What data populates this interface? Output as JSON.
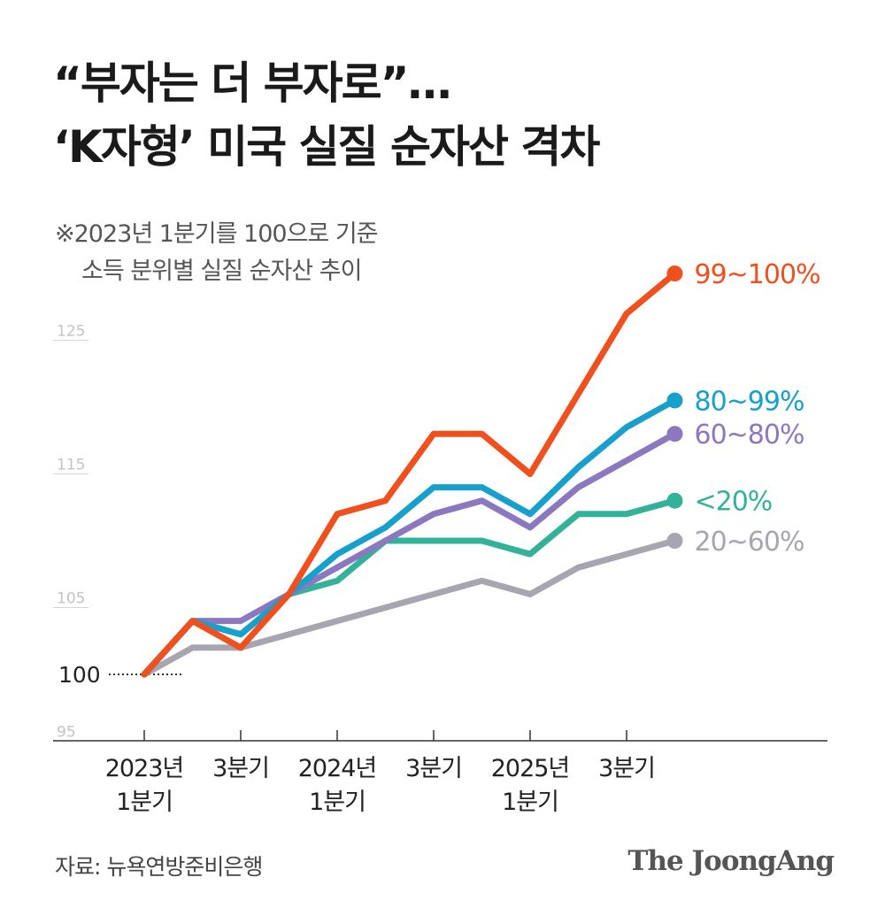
{
  "title": {
    "line1": "“부자는 더 부자로”…",
    "line2": "‘K자형’ 미국 실질 순자산 격차"
  },
  "subtitle": {
    "line1": "※2023년 1분기를 100으로 기준",
    "line2": "소득 분위별 실질 순자산 추이"
  },
  "source": "자료: 뉴욕연방준비은행",
  "logo": "The JoongAng",
  "chart_data": {
    "type": "line",
    "title": "",
    "xlabel": "",
    "ylabel": "",
    "ylim": [
      95,
      130
    ],
    "y_ticks": [
      {
        "value": 125,
        "label": "125"
      },
      {
        "value": 115,
        "label": "115"
      },
      {
        "value": 105,
        "label": "105"
      },
      {
        "value": 100,
        "label": "100"
      },
      {
        "value": 95,
        "label": "95"
      }
    ],
    "x": [
      "2023 Q1",
      "2023 Q2",
      "2023 Q3",
      "2023 Q4",
      "2024 Q1",
      "2024 Q2",
      "2024 Q3",
      "2024 Q4",
      "2025 Q1",
      "2025 Q2",
      "2025 Q3",
      "2025 Q4"
    ],
    "x_tick_labels": [
      {
        "index": 0,
        "lines": [
          "2023년",
          "1분기"
        ]
      },
      {
        "index": 2,
        "lines": [
          "3분기"
        ]
      },
      {
        "index": 4,
        "lines": [
          "2024년",
          "1분기"
        ]
      },
      {
        "index": 6,
        "lines": [
          "3분기"
        ]
      },
      {
        "index": 8,
        "lines": [
          "2025년",
          "1분기"
        ]
      },
      {
        "index": 10,
        "lines": [
          "3분기"
        ]
      }
    ],
    "grid": false,
    "legend": "end-of-line labels",
    "series": [
      {
        "name": "20~60%",
        "color": "#a7a6b0",
        "values": [
          100,
          102,
          102,
          103,
          104,
          105,
          106,
          107,
          106,
          108,
          109,
          110
        ]
      },
      {
        "name": "<20%",
        "color": "#33b29a",
        "values": [
          100,
          104,
          103,
          106,
          107,
          110,
          110,
          110,
          109,
          112,
          112,
          113
        ]
      },
      {
        "name": "60~80%",
        "color": "#8b78c0",
        "values": [
          100,
          104,
          104,
          106,
          108,
          110,
          112,
          113,
          111,
          114,
          116,
          118
        ]
      },
      {
        "name": "80~99%",
        "color": "#17a0cc",
        "values": [
          100,
          104,
          103,
          106,
          109,
          111,
          114,
          114,
          112,
          115.5,
          118.5,
          120.5
        ]
      },
      {
        "name": "99~100%",
        "color": "#f0501e",
        "values": [
          100,
          104,
          102,
          106,
          112,
          113,
          118,
          118,
          115,
          121,
          127,
          130
        ]
      }
    ],
    "series_labels": [
      "99~100%",
      "80~99%",
      "60~80%",
      "<20%",
      "20~60%"
    ],
    "baseline_label": "100"
  }
}
